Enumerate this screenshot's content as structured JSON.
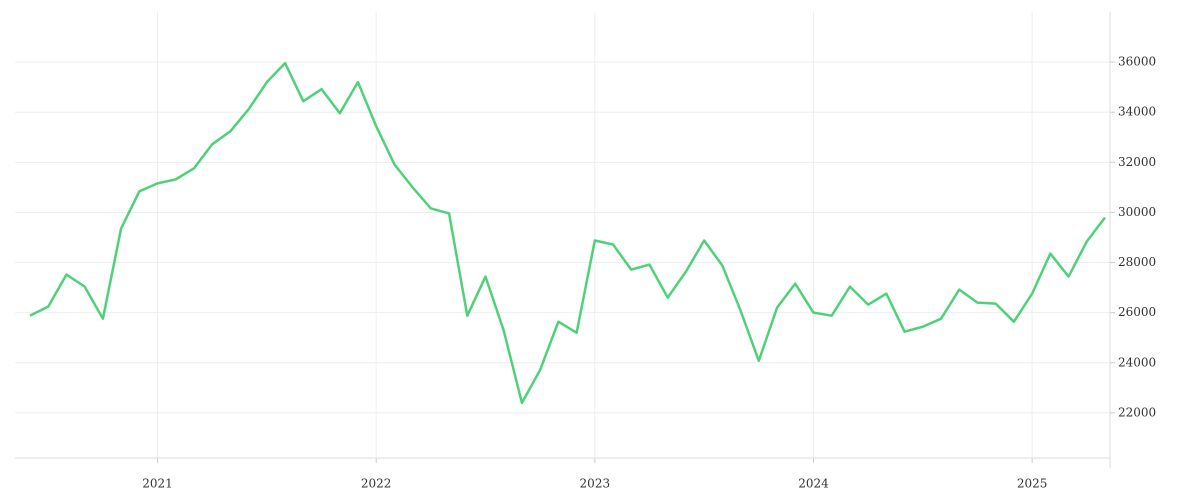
{
  "chart_data": {
    "type": "line",
    "categories": [
      null,
      null,
      null,
      null,
      null,
      null,
      null,
      "2021",
      null,
      null,
      null,
      null,
      null,
      null,
      null,
      null,
      null,
      null,
      null,
      "2022",
      null,
      null,
      null,
      null,
      null,
      null,
      null,
      null,
      null,
      null,
      null,
      "2023",
      null,
      null,
      null,
      null,
      null,
      null,
      null,
      null,
      null,
      null,
      null,
      "2024",
      null,
      null,
      null,
      null,
      null,
      null,
      null,
      null,
      null,
      null,
      null,
      "2025",
      null,
      null,
      null,
      null
    ],
    "values": [
      25880,
      26240,
      27520,
      27040,
      25760,
      29360,
      30840,
      31160,
      31320,
      31760,
      32720,
      33240,
      34120,
      35200,
      35960,
      34440,
      34920,
      33960,
      35200,
      33440,
      31920,
      31000,
      30160,
      29960,
      25880,
      27440,
      25280,
      22400,
      23720,
      25640,
      25200,
      28880,
      28720,
      27720,
      27920,
      26600,
      27640,
      28880,
      27880,
      26080,
      24080,
      26200,
      27160,
      26000,
      25880,
      27040,
      26320,
      26760,
      25240,
      25440,
      25760,
      26920,
      26400,
      26360,
      25640,
      26760,
      28360,
      27440,
      28840,
      29800
    ],
    "color": "#4fd17a",
    "ylim": [
      20200,
      38000
    ],
    "yticks": [
      22000,
      24000,
      26000,
      28000,
      30000,
      32000,
      34000,
      36000
    ],
    "grid": true
  }
}
